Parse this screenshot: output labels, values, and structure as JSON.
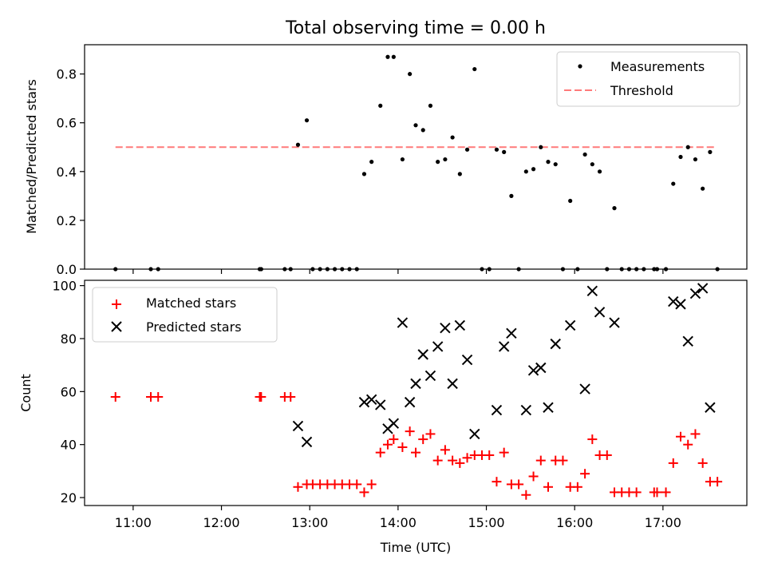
{
  "chart_data": [
    {
      "type": "scatter",
      "title": "Total observing time = 0.00 h",
      "ylabel": "Matched/Predicted stars",
      "ylim": [
        0,
        0.92
      ],
      "yticks": [
        0,
        0.2,
        0.4,
        0.6,
        0.8
      ],
      "ytick_labels": [
        "0.0",
        "0.2",
        "0.4",
        "0.6",
        "0.8"
      ],
      "xlim": [
        "10:27",
        "17:57"
      ],
      "legend": {
        "position": "top-right",
        "entries": [
          "Measurements",
          "Threshold"
        ]
      },
      "threshold": {
        "name": "Threshold",
        "value": 0.5,
        "x_range": [
          "10:48",
          "17:36"
        ],
        "color": "#ff7a7a",
        "style": "dashed"
      },
      "series": [
        {
          "name": "Measurements",
          "marker": "dot",
          "color": "#000000",
          "points": [
            [
              "10:48",
              0.0
            ],
            [
              "11:12",
              0.0
            ],
            [
              "11:17",
              0.0
            ],
            [
              "12:26",
              0.0
            ],
            [
              "12:27",
              0.0
            ],
            [
              "12:43",
              0.0
            ],
            [
              "12:47",
              0.0
            ],
            [
              "12:52",
              0.51
            ],
            [
              "12:58",
              0.61
            ],
            [
              "13:02",
              0.0
            ],
            [
              "13:07",
              0.0
            ],
            [
              "13:12",
              0.0
            ],
            [
              "13:17",
              0.0
            ],
            [
              "13:22",
              0.0
            ],
            [
              "13:27",
              0.0
            ],
            [
              "13:32",
              0.0
            ],
            [
              "13:37",
              0.39
            ],
            [
              "13:42",
              0.44
            ],
            [
              "13:48",
              0.67
            ],
            [
              "13:53",
              0.87
            ],
            [
              "13:57",
              0.87
            ],
            [
              "14:03",
              0.45
            ],
            [
              "14:08",
              0.8
            ],
            [
              "14:12",
              0.59
            ],
            [
              "14:17",
              0.57
            ],
            [
              "14:22",
              0.67
            ],
            [
              "14:27",
              0.44
            ],
            [
              "14:32",
              0.45
            ],
            [
              "14:37",
              0.54
            ],
            [
              "14:42",
              0.39
            ],
            [
              "14:47",
              0.49
            ],
            [
              "14:52",
              0.82
            ],
            [
              "14:57",
              0.0
            ],
            [
              "15:02",
              0.0
            ],
            [
              "15:07",
              0.49
            ],
            [
              "15:12",
              0.48
            ],
            [
              "15:17",
              0.3
            ],
            [
              "15:22",
              0.0
            ],
            [
              "15:27",
              0.4
            ],
            [
              "15:32",
              0.41
            ],
            [
              "15:37",
              0.5
            ],
            [
              "15:42",
              0.44
            ],
            [
              "15:47",
              0.43
            ],
            [
              "15:52",
              0.0
            ],
            [
              "15:57",
              0.28
            ],
            [
              "16:02",
              0.0
            ],
            [
              "16:07",
              0.47
            ],
            [
              "16:12",
              0.43
            ],
            [
              "16:17",
              0.4
            ],
            [
              "16:22",
              0.0
            ],
            [
              "16:27",
              0.25
            ],
            [
              "16:32",
              0.0
            ],
            [
              "16:37",
              0.0
            ],
            [
              "16:42",
              0.0
            ],
            [
              "16:47",
              0.0
            ],
            [
              "16:54",
              0.0
            ],
            [
              "16:56",
              0.0
            ],
            [
              "17:02",
              0.0
            ],
            [
              "17:07",
              0.35
            ],
            [
              "17:12",
              0.46
            ],
            [
              "17:17",
              0.5
            ],
            [
              "17:22",
              0.45
            ],
            [
              "17:27",
              0.33
            ],
            [
              "17:32",
              0.48
            ],
            [
              "17:37",
              0.0
            ]
          ]
        }
      ]
    },
    {
      "type": "scatter",
      "xlabel": "Time (UTC)",
      "ylabel": "Count",
      "ylim": [
        17,
        102
      ],
      "yticks": [
        20,
        40,
        60,
        80,
        100
      ],
      "ytick_labels": [
        "20",
        "40",
        "60",
        "80",
        "100"
      ],
      "xlim": [
        "10:27",
        "17:57"
      ],
      "xticks": [
        "11:00",
        "12:00",
        "13:00",
        "14:00",
        "15:00",
        "16:00",
        "17:00"
      ],
      "legend": {
        "position": "top-left",
        "entries": [
          "Matched stars",
          "Predicted stars"
        ]
      },
      "series": [
        {
          "name": "Matched stars",
          "marker": "plus",
          "color": "#ff0000",
          "points": [
            [
              "10:48",
              58
            ],
            [
              "11:12",
              58
            ],
            [
              "11:17",
              58
            ],
            [
              "12:26",
              58
            ],
            [
              "12:27",
              58
            ],
            [
              "12:43",
              58
            ],
            [
              "12:47",
              58
            ],
            [
              "12:52",
              24
            ],
            [
              "12:58",
              25
            ],
            [
              "13:02",
              25
            ],
            [
              "13:07",
              25
            ],
            [
              "13:12",
              25
            ],
            [
              "13:17",
              25
            ],
            [
              "13:22",
              25
            ],
            [
              "13:27",
              25
            ],
            [
              "13:32",
              25
            ],
            [
              "13:37",
              22
            ],
            [
              "13:42",
              25
            ],
            [
              "13:48",
              37
            ],
            [
              "13:53",
              40
            ],
            [
              "13:57",
              42
            ],
            [
              "14:03",
              39
            ],
            [
              "14:08",
              45
            ],
            [
              "14:12",
              37
            ],
            [
              "14:17",
              42
            ],
            [
              "14:22",
              44
            ],
            [
              "14:27",
              34
            ],
            [
              "14:32",
              38
            ],
            [
              "14:37",
              34
            ],
            [
              "14:42",
              33
            ],
            [
              "14:47",
              35
            ],
            [
              "14:52",
              36
            ],
            [
              "14:57",
              36
            ],
            [
              "15:02",
              36
            ],
            [
              "15:07",
              26
            ],
            [
              "15:12",
              37
            ],
            [
              "15:17",
              25
            ],
            [
              "15:22",
              25
            ],
            [
              "15:27",
              21
            ],
            [
              "15:32",
              28
            ],
            [
              "15:37",
              34
            ],
            [
              "15:42",
              24
            ],
            [
              "15:47",
              34
            ],
            [
              "15:52",
              34
            ],
            [
              "15:57",
              24
            ],
            [
              "16:02",
              24
            ],
            [
              "16:07",
              29
            ],
            [
              "16:12",
              42
            ],
            [
              "16:17",
              36
            ],
            [
              "16:22",
              36
            ],
            [
              "16:27",
              22
            ],
            [
              "16:32",
              22
            ],
            [
              "16:37",
              22
            ],
            [
              "16:42",
              22
            ],
            [
              "16:54",
              22
            ],
            [
              "16:56",
              22
            ],
            [
              "17:02",
              22
            ],
            [
              "17:07",
              33
            ],
            [
              "17:12",
              43
            ],
            [
              "17:17",
              40
            ],
            [
              "17:22",
              44
            ],
            [
              "17:27",
              33
            ],
            [
              "17:32",
              26
            ],
            [
              "17:37",
              26
            ]
          ]
        },
        {
          "name": "Predicted stars",
          "marker": "x",
          "color": "#000000",
          "points": [
            [
              "12:52",
              47
            ],
            [
              "12:58",
              41
            ],
            [
              "13:37",
              56
            ],
            [
              "13:42",
              57
            ],
            [
              "13:48",
              55
            ],
            [
              "13:53",
              46
            ],
            [
              "13:57",
              48
            ],
            [
              "14:03",
              86
            ],
            [
              "14:08",
              56
            ],
            [
              "14:12",
              63
            ],
            [
              "14:17",
              74
            ],
            [
              "14:22",
              66
            ],
            [
              "14:27",
              77
            ],
            [
              "14:32",
              84
            ],
            [
              "14:37",
              63
            ],
            [
              "14:42",
              85
            ],
            [
              "14:47",
              72
            ],
            [
              "14:52",
              44
            ],
            [
              "15:07",
              53
            ],
            [
              "15:12",
              77
            ],
            [
              "15:17",
              82
            ],
            [
              "15:27",
              53
            ],
            [
              "15:32",
              68
            ],
            [
              "15:37",
              69
            ],
            [
              "15:42",
              54
            ],
            [
              "15:47",
              78
            ],
            [
              "15:57",
              85
            ],
            [
              "16:07",
              61
            ],
            [
              "16:12",
              98
            ],
            [
              "16:17",
              90
            ],
            [
              "16:27",
              86
            ],
            [
              "17:07",
              94
            ],
            [
              "17:12",
              93
            ],
            [
              "17:17",
              79
            ],
            [
              "17:22",
              97
            ],
            [
              "17:27",
              99
            ],
            [
              "17:32",
              54
            ]
          ]
        }
      ]
    }
  ]
}
